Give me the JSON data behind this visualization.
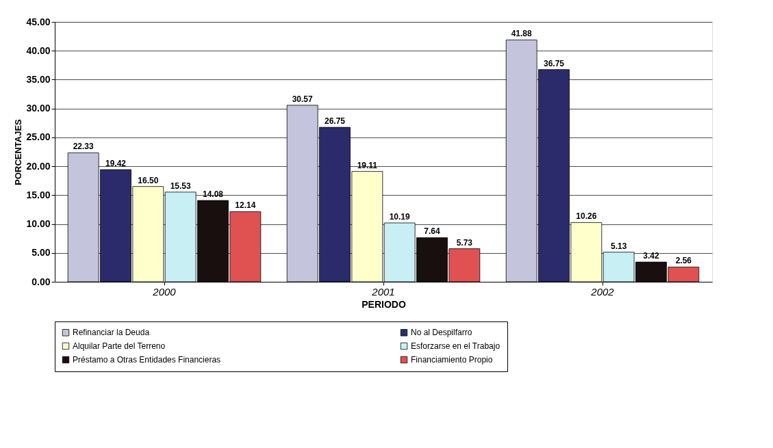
{
  "chart_data": {
    "type": "bar",
    "xlabel": "PERIODO",
    "ylabel": "PORCENTAJES",
    "categories": [
      "2000",
      "2001",
      "2002"
    ],
    "series": [
      {
        "name": "Refinanciar la Deuda",
        "color": "#c4c4dc",
        "values": [
          22.33,
          30.57,
          41.88
        ],
        "value_labels": [
          "22.33",
          "30.57",
          "41.88"
        ]
      },
      {
        "name": "No al Despilfarro",
        "color": "#2b2b6b",
        "values": [
          19.42,
          26.75,
          36.75
        ],
        "value_labels": [
          "19.42",
          "26.75",
          "36.75"
        ]
      },
      {
        "name": "Alquilar Parte del Terreno",
        "color": "#ffffcc",
        "values": [
          16.5,
          19.11,
          10.26
        ],
        "value_labels": [
          "16.50",
          "19.11",
          "10.26"
        ]
      },
      {
        "name": "Esforzarse en el Trabajo",
        "color": "#c8f0f4",
        "values": [
          15.53,
          10.19,
          5.13
        ],
        "value_labels": [
          "15.53",
          "10.19",
          "5.13"
        ]
      },
      {
        "name": "Préstamo a Otras Entidades Financieras",
        "color": "#1a0f0f",
        "values": [
          14.08,
          7.64,
          3.42
        ],
        "value_labels": [
          "14.08",
          "7.64",
          "3.42"
        ]
      },
      {
        "name": "Financiamiento Propio",
        "color": "#e05252",
        "values": [
          12.14,
          5.73,
          2.56
        ],
        "value_labels": [
          "12.14",
          "5.73",
          "2.56"
        ]
      }
    ],
    "ylim": [
      0,
      45
    ],
    "yticks": [
      {
        "value": 0,
        "label": "0.00"
      },
      {
        "value": 5,
        "label": "5.00"
      },
      {
        "value": 10,
        "label": "10.00"
      },
      {
        "value": 15,
        "label": "15.00"
      },
      {
        "value": 20,
        "label": "20.00"
      },
      {
        "value": 25,
        "label": "25.00"
      },
      {
        "value": 30,
        "label": "30.00"
      },
      {
        "value": 35,
        "label": "35.00"
      },
      {
        "value": 40,
        "label": "40.00"
      },
      {
        "value": 45,
        "label": "45.00"
      }
    ],
    "grid": "y",
    "legend": "bottom"
  }
}
